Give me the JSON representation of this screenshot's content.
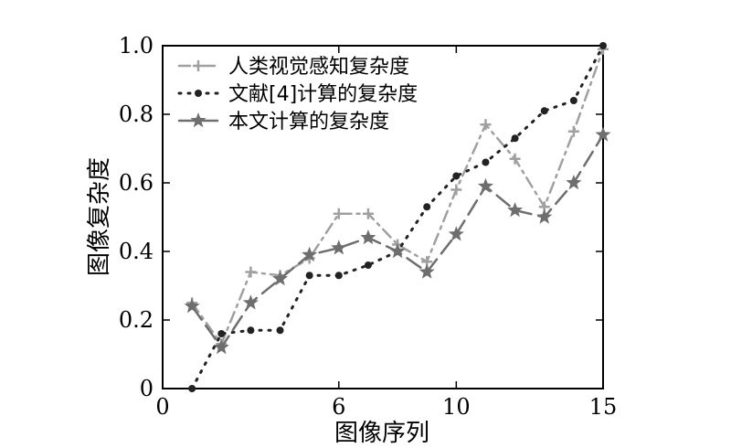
{
  "chart_data": {
    "type": "line",
    "title": "",
    "xlabel": "图像序列",
    "ylabel": "图像复杂度",
    "xlim": [
      0,
      15
    ],
    "ylim": [
      0,
      1.0
    ],
    "xticks": [
      0,
      6,
      10,
      15
    ],
    "yticks": [
      0,
      0.2,
      0.4,
      0.6,
      0.8,
      1.0
    ],
    "xtick_labels": [
      "0",
      "6",
      "10",
      "15"
    ],
    "ytick_labels": [
      "0",
      "0.2",
      "0.4",
      "0.6",
      "0.8",
      "1.0"
    ],
    "grid": false,
    "legend_position": "top-left",
    "x": [
      1,
      2,
      3,
      4,
      5,
      6,
      7,
      8,
      9,
      10,
      11,
      12,
      13,
      14,
      15
    ],
    "series": [
      {
        "name": "人类视觉感知复杂度",
        "values": [
          0.25,
          0.13,
          0.34,
          0.33,
          0.38,
          0.51,
          0.51,
          0.42,
          0.37,
          0.58,
          0.77,
          0.67,
          0.53,
          0.75,
          0.99
        ],
        "color": "#a0a0a0",
        "marker": "plus",
        "dash": "dashdot"
      },
      {
        "name": "文献[4]计算的复杂度",
        "values": [
          0.0,
          0.16,
          0.17,
          0.17,
          0.33,
          0.33,
          0.36,
          0.4,
          0.53,
          0.62,
          0.66,
          0.73,
          0.81,
          0.84,
          1.0
        ],
        "color": "#222222",
        "marker": "dot",
        "dash": "dotted"
      },
      {
        "name": "本文计算的复杂度",
        "values": [
          0.24,
          0.12,
          0.25,
          0.32,
          0.39,
          0.41,
          0.44,
          0.4,
          0.34,
          0.45,
          0.59,
          0.52,
          0.5,
          0.6,
          0.74
        ],
        "color": "#6e6e6e",
        "marker": "star",
        "dash": "dashed"
      }
    ]
  }
}
